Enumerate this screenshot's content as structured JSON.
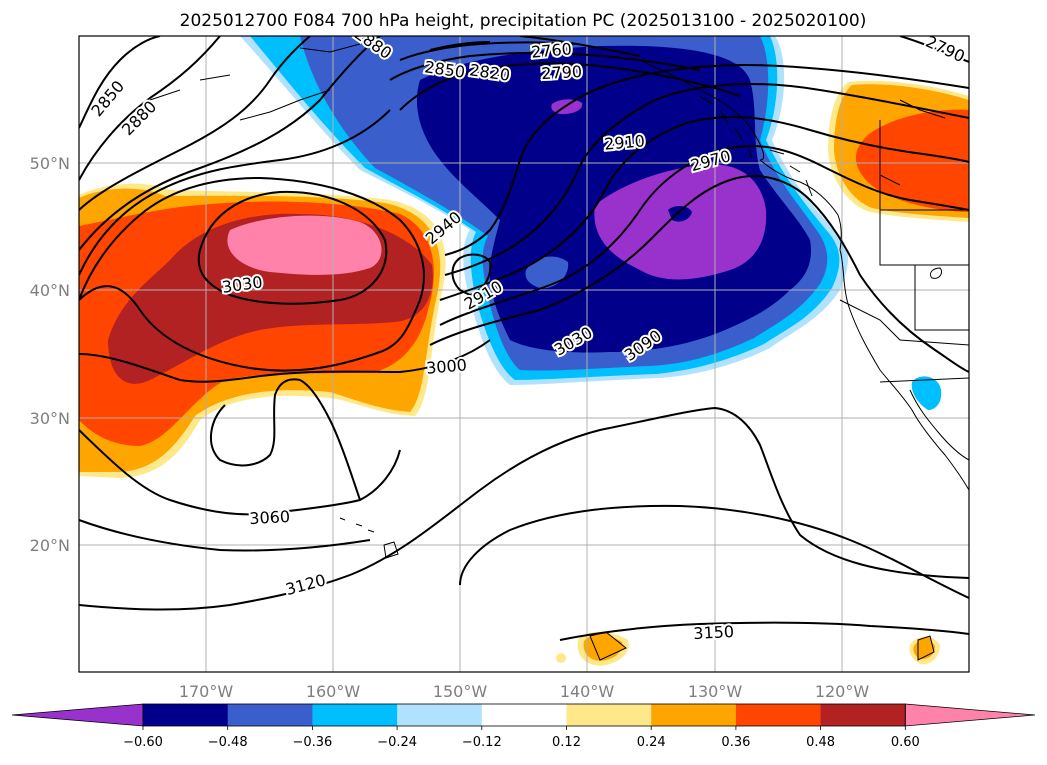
{
  "title": "2025012700 F084 700 hPa height, precipitation PC (2025013100 - 2025020100)",
  "colors": {
    "frame": "#000000",
    "grid": "#b0b0b0",
    "contour": "#000000",
    "coast": "#000000"
  },
  "map": {
    "lon_ticks": [
      "170°W",
      "160°W",
      "150°W",
      "140°W",
      "130°W",
      "120°W"
    ],
    "lat_ticks": [
      "50°N",
      "40°N",
      "30°N",
      "20°N"
    ]
  },
  "contour_labels": [
    "2760",
    "2790",
    "2790",
    "2820",
    "2850",
    "2850",
    "2880",
    "2880",
    "2910",
    "2910",
    "2940",
    "2970",
    "3000",
    "3030",
    "3030",
    "3060",
    "3090",
    "3120",
    "3150"
  ],
  "colorbar": {
    "levels": [
      "−0.60",
      "−0.48",
      "−0.36",
      "−0.24",
      "−0.12",
      "0.12",
      "0.24",
      "0.36",
      "0.48",
      "0.60"
    ],
    "colors": [
      "#9932cc",
      "#00008b",
      "#3a5fcd",
      "#00bfff",
      "#b0e2ff",
      "#ffffff",
      "#ffe88a",
      "#ffa500",
      "#ff4500",
      "#b22222",
      "#ff82ab"
    ]
  }
}
